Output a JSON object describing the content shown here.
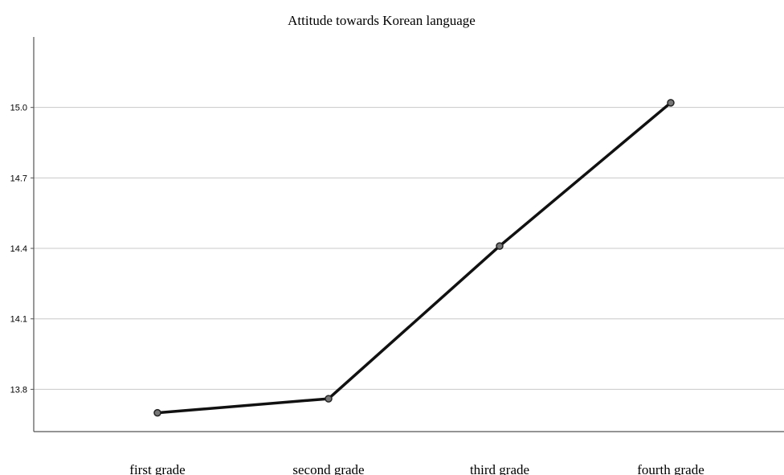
{
  "chart_data": {
    "type": "line",
    "title": "Attitude towards Korean language",
    "xlabel": "",
    "ylabel": "",
    "categories": [
      "first grade",
      "second grade",
      "third grade",
      "fourth grade"
    ],
    "series": [
      {
        "values": [
          13.7,
          13.76,
          14.41,
          15.02
        ]
      }
    ],
    "ylim": [
      13.62,
      15.3
    ],
    "yticks": [
      "13.8",
      "14.1",
      "14.4",
      "14.7",
      "15.0"
    ],
    "grid": true,
    "legend": "none",
    "colors": {
      "line": "#111111",
      "marker": "#777777",
      "grid": "#c8c8c8"
    }
  }
}
